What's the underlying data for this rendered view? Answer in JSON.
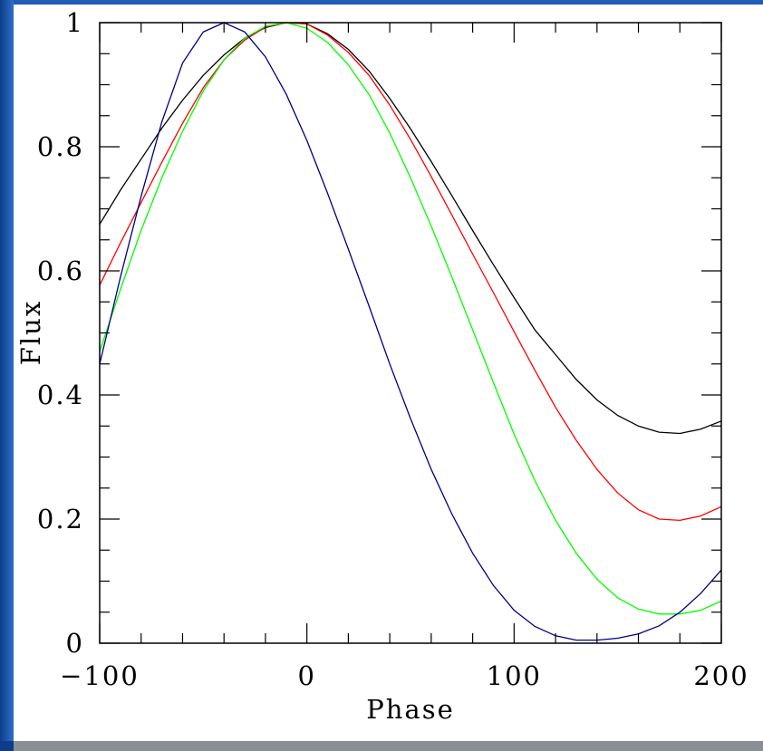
{
  "chart_data": {
    "type": "line",
    "title": "",
    "xlabel": "Phase",
    "ylabel": "Flux",
    "xlim": [
      -100,
      200
    ],
    "ylim": [
      0,
      1
    ],
    "xticks": [
      -100,
      0,
      100,
      200
    ],
    "xtick_labels": [
      "−100",
      "0",
      "100",
      "200"
    ],
    "yticks": [
      0,
      0.2,
      0.4,
      0.6,
      0.8,
      1
    ],
    "ytick_labels": [
      "0",
      "0.2",
      "0.4",
      "0.6",
      "0.8",
      "1"
    ],
    "grid": false,
    "legend": "none",
    "series": [
      {
        "color": "#000000",
        "x": [
          -100,
          -90,
          -80,
          -70,
          -60,
          -50,
          -40,
          -30,
          -20,
          -10,
          0,
          10,
          20,
          30,
          40,
          50,
          60,
          70,
          80,
          90,
          100,
          110,
          120,
          130,
          140,
          150,
          160,
          170,
          180,
          190,
          200
        ],
        "y": [
          0.675,
          0.73,
          0.78,
          0.83,
          0.875,
          0.915,
          0.948,
          0.975,
          0.992,
          1.0,
          0.998,
          0.982,
          0.957,
          0.922,
          0.878,
          0.829,
          0.776,
          0.721,
          0.665,
          0.61,
          0.557,
          0.505,
          0.465,
          0.425,
          0.392,
          0.367,
          0.35,
          0.34,
          0.338,
          0.345,
          0.358
        ]
      },
      {
        "color": "#ff0000",
        "x": [
          -100,
          -90,
          -80,
          -70,
          -60,
          -50,
          -40,
          -30,
          -20,
          -10,
          0,
          10,
          20,
          30,
          40,
          50,
          60,
          70,
          80,
          90,
          100,
          110,
          120,
          130,
          140,
          150,
          160,
          170,
          180,
          190,
          200
        ],
        "y": [
          0.577,
          0.645,
          0.71,
          0.775,
          0.838,
          0.895,
          0.94,
          0.972,
          0.993,
          1.0,
          0.998,
          0.98,
          0.952,
          0.915,
          0.867,
          0.812,
          0.752,
          0.69,
          0.627,
          0.565,
          0.502,
          0.44,
          0.38,
          0.327,
          0.28,
          0.242,
          0.215,
          0.2,
          0.198,
          0.205,
          0.22
        ]
      },
      {
        "color": "#00ff00",
        "x": [
          -100,
          -90,
          -80,
          -70,
          -60,
          -50,
          -40,
          -30,
          -20,
          -10,
          0,
          10,
          20,
          30,
          40,
          50,
          60,
          70,
          80,
          90,
          100,
          110,
          120,
          130,
          140,
          150,
          160,
          170,
          180,
          190,
          200
        ],
        "y": [
          0.47,
          0.57,
          0.665,
          0.75,
          0.825,
          0.89,
          0.94,
          0.975,
          0.994,
          1.0,
          0.991,
          0.968,
          0.932,
          0.884,
          0.822,
          0.75,
          0.672,
          0.59,
          0.505,
          0.42,
          0.337,
          0.262,
          0.198,
          0.145,
          0.103,
          0.073,
          0.055,
          0.047,
          0.047,
          0.053,
          0.068
        ]
      },
      {
        "color": "#000080",
        "x": [
          -100,
          -90,
          -80,
          -70,
          -60,
          -50,
          -40,
          -30,
          -20,
          -10,
          0,
          10,
          20,
          30,
          40,
          50,
          60,
          70,
          80,
          90,
          100,
          110,
          120,
          130,
          140,
          150,
          160,
          170,
          180,
          190,
          200
        ],
        "y": [
          0.45,
          0.59,
          0.72,
          0.84,
          0.935,
          0.985,
          1.0,
          0.985,
          0.945,
          0.885,
          0.81,
          0.725,
          0.635,
          0.543,
          0.45,
          0.362,
          0.28,
          0.208,
          0.145,
          0.093,
          0.053,
          0.027,
          0.012,
          0.005,
          0.005,
          0.008,
          0.015,
          0.028,
          0.05,
          0.08,
          0.118
        ]
      }
    ]
  }
}
